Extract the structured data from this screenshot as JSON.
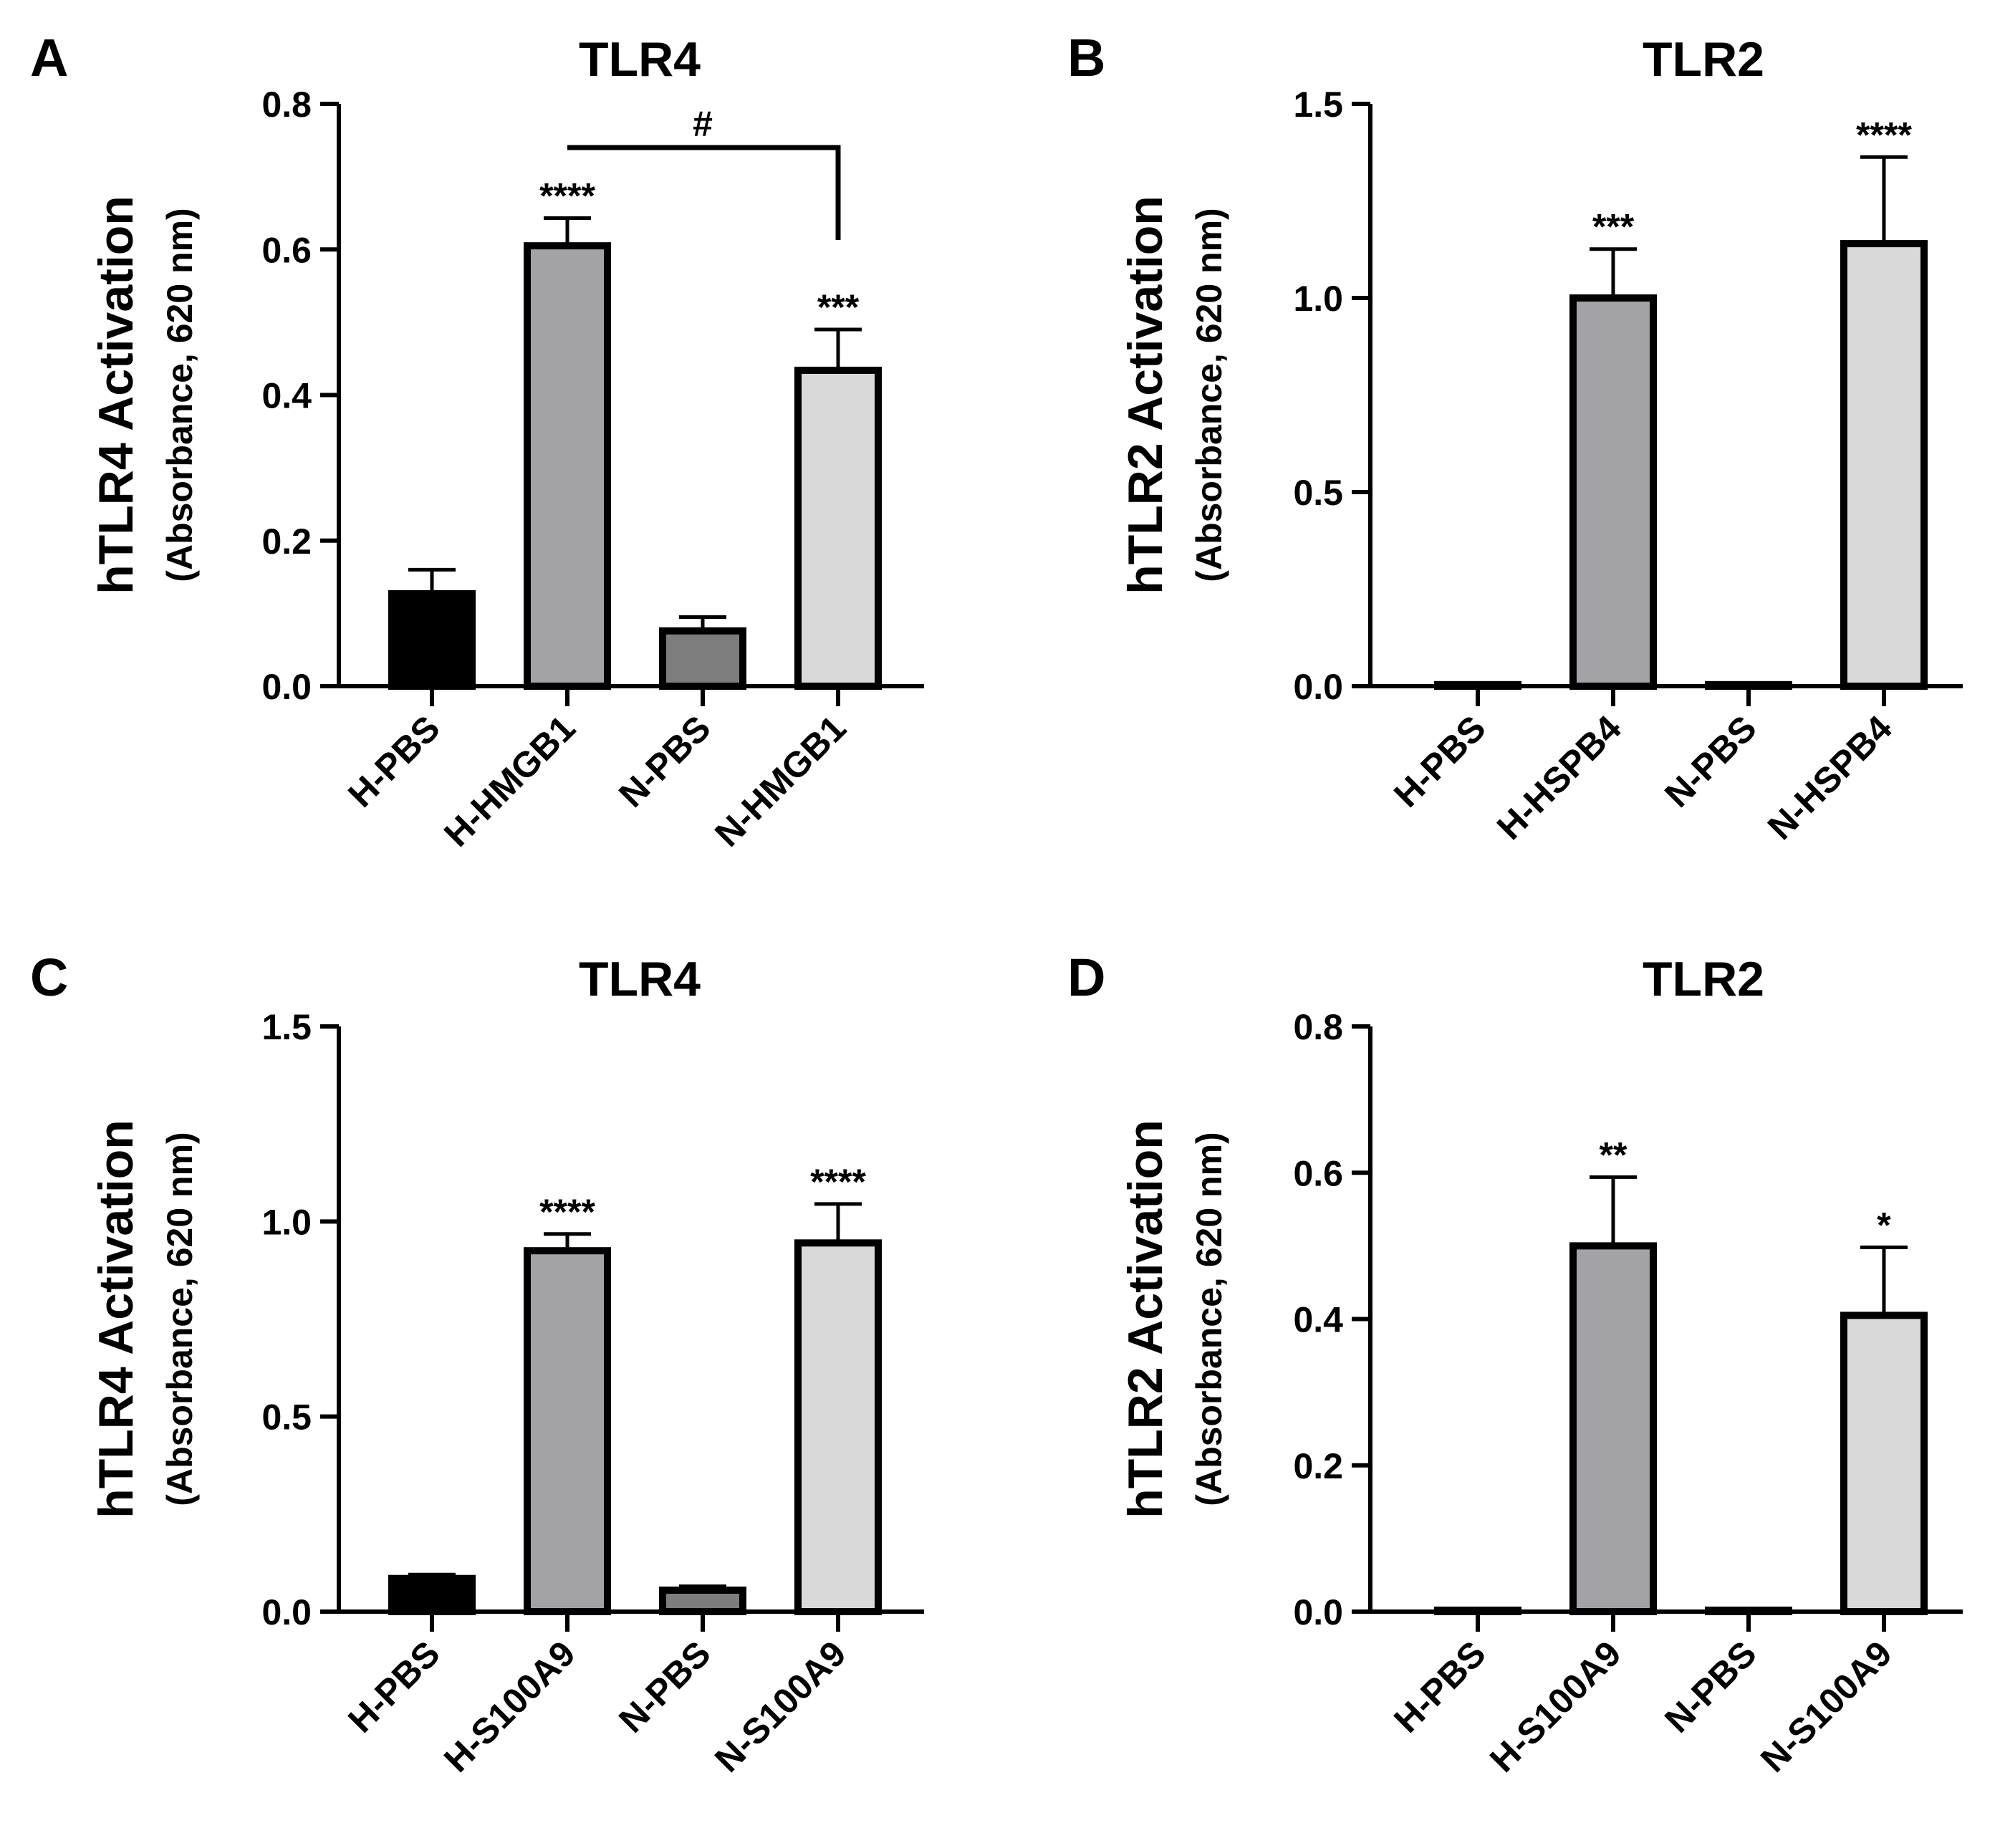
{
  "figure": {
    "panels": [
      "A",
      "B",
      "C",
      "D"
    ]
  },
  "chart_data": [
    {
      "panel": "A",
      "type": "bar",
      "title": "TLR4",
      "ylabel": "hTLR4 Activation",
      "ylabel_sub": "(Absorbance, 620 nm)",
      "categories": [
        "H-PBS",
        "H-HMGB1",
        "N-PBS",
        "N-HMGB1"
      ],
      "values": [
        0.127,
        0.605,
        0.076,
        0.434
      ],
      "errors": [
        0.033,
        0.038,
        0.019,
        0.056
      ],
      "significance": [
        "",
        "****",
        "",
        "***"
      ],
      "colors": [
        "#000000",
        "#a3a2a7",
        "#7d7d7d",
        "#d9d9d9"
      ],
      "ylim": [
        0,
        0.8
      ],
      "yticks": [
        0.0,
        0.2,
        0.4,
        0.6,
        0.8
      ],
      "ytick_labels": [
        "0.0",
        "0.2",
        "0.4",
        "0.6",
        "0.8"
      ],
      "bracket": {
        "from": 1,
        "to": 3,
        "label": "#",
        "level": 0.74
      }
    },
    {
      "panel": "B",
      "type": "bar",
      "title": "TLR2",
      "ylabel": "hTLR2 Activation",
      "ylabel_sub": "(Absorbance, 620 nm)",
      "categories": [
        "H-PBS",
        "H-HSPB4",
        "N-PBS",
        "N-HSPB4"
      ],
      "values": [
        0.004,
        1.0,
        0.004,
        1.14
      ],
      "errors": [
        0.0,
        0.126,
        0.0,
        0.223
      ],
      "significance": [
        "",
        "***",
        "",
        "****"
      ],
      "colors": [
        "#000000",
        "#a3a2a7",
        "#7d7d7d",
        "#d9d9d9"
      ],
      "ylim": [
        0,
        1.5
      ],
      "yticks": [
        0.0,
        0.5,
        1.0,
        1.5
      ],
      "ytick_labels": [
        "0.0",
        "0.5",
        "1.0",
        "1.5"
      ]
    },
    {
      "panel": "C",
      "type": "bar",
      "title": "TLR4",
      "ylabel": "hTLR4 Activation",
      "ylabel_sub": "(Absorbance, 620 nm)",
      "categories": [
        "H-PBS",
        "H-S100A9",
        "N-PBS",
        "N-S100A9"
      ],
      "values": [
        0.085,
        0.925,
        0.055,
        0.945
      ],
      "errors": [
        0.01,
        0.043,
        0.01,
        0.1
      ],
      "significance": [
        "",
        "****",
        "",
        "****"
      ],
      "colors": [
        "#000000",
        "#a3a2a7",
        "#7d7d7d",
        "#d9d9d9"
      ],
      "ylim": [
        0,
        1.5
      ],
      "yticks": [
        0.0,
        0.5,
        1.0,
        1.5
      ],
      "ytick_labels": [
        "0.0",
        "0.5",
        "1.0",
        "1.5"
      ]
    },
    {
      "panel": "D",
      "type": "bar",
      "title": "TLR2",
      "ylabel": "hTLR2 Activation",
      "ylabel_sub": "(Absorbance, 620 nm)",
      "categories": [
        "H-PBS",
        "H-S100A9",
        "N-PBS",
        "N-S100A9"
      ],
      "values": [
        0.002,
        0.5,
        0.002,
        0.405
      ],
      "errors": [
        0.0,
        0.094,
        0.0,
        0.093
      ],
      "significance": [
        "",
        "**",
        "",
        "*"
      ],
      "colors": [
        "#000000",
        "#a3a2a7",
        "#7d7d7d",
        "#d9d9d9"
      ],
      "ylim": [
        0,
        0.8
      ],
      "yticks": [
        0.0,
        0.2,
        0.4,
        0.6,
        0.8
      ],
      "ytick_labels": [
        "0.0",
        "0.2",
        "0.4",
        "0.6",
        "0.8"
      ]
    }
  ]
}
